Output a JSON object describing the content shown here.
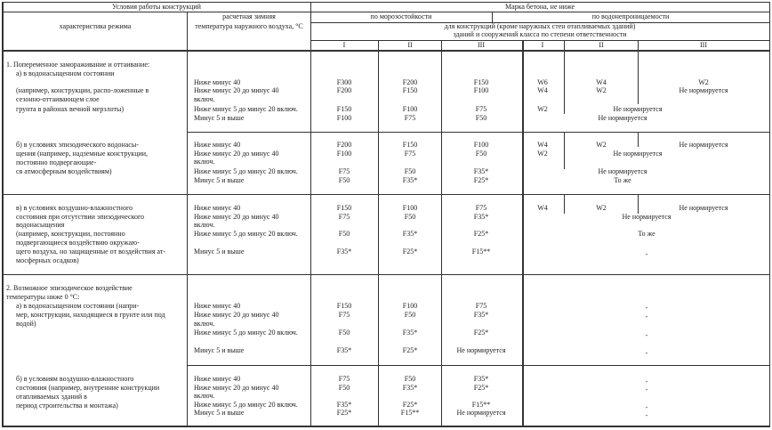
{
  "header": {
    "conditions": "Условия работы конструкций",
    "regime": "характеристика режима",
    "temp_line1": "расчетная зимняя",
    "temp_line2": "температура наружного воздуха, °С",
    "grade": "Марка бетона, не ниже",
    "frost": "по морозостойкости",
    "water": "по водонепроницаемости",
    "note1": "для конструкций (кроме наружных стен отапливаемых зданий)",
    "note2": "зданий и сооружений класса по степени ответственности",
    "classes": [
      "I",
      "II",
      "III",
      "I",
      "II",
      "III"
    ]
  },
  "groups": [
    {
      "regime": [
        "1. Попеременное замораживание и оттаивание:",
        "а) в водонасыщенном состоянии",
        "(например, конструкции, распо-ложенные в",
        "сезонно-оттаивающем слое",
        "грунта в районах вечной мерзлоты)"
      ],
      "temps": [
        "Ниже минус 40",
        "Ниже минус 20 до минус 40",
        "включ.",
        "Ниже минус 5 до минус 20 включ.",
        "Минус 5 и выше"
      ],
      "frost": [
        [
          "F300",
          "F200",
          "F150"
        ],
        [
          "F200",
          "F150",
          "F100"
        ],
        [
          "F150",
          "F100",
          "F75"
        ],
        [
          "F100",
          "F75",
          "F50"
        ]
      ],
      "water": [
        "W6",
        "W4",
        "W2",
        "W4",
        "W2",
        "Не нормируется",
        "W2",
        "Не нормируется",
        "Не нормируется"
      ]
    },
    {
      "regime": [
        "б) в условиях эпизодического водонасы-",
        "щения (например, надземные конструкции,",
        "постоянно подвергающие-",
        "ся атмосферным воздействиям)"
      ],
      "temps": [
        "Ниже минус 40",
        "Ниже минус 20 до минус 40",
        "включ.",
        "Ниже минус 5 до минус 20 включ.",
        "Минус 5 и выше"
      ],
      "frost": [
        [
          "F200",
          "F150",
          "F100"
        ],
        [
          "F100",
          "F75",
          "F50"
        ],
        [
          "F75",
          "F50",
          "F35*"
        ],
        [
          "F50",
          "F35*",
          "F25*"
        ]
      ],
      "water": [
        "W4",
        "W2",
        "Не нормируется",
        "W2",
        "Не нормируется",
        "Не нормируется",
        "То же"
      ]
    },
    {
      "regime": [
        "в) в условиях воздушно-влажностного",
        "состояния при отсутствии эпизодического",
        "водонасыщения",
        "(например, конструкции, постоянно",
        "подвергающиеся воздействию окружаю-",
        "щего воздуха, но защищенные от воздействия ат-",
        "мосферных осадков)"
      ],
      "temps": [
        "Ниже минус 40",
        "Ниже минус 20 до минус 40",
        "включ.",
        "Ниже минус 5 до минус 20 включ.",
        "Минус 5 и выше"
      ],
      "frost": [
        [
          "F150",
          "F100",
          "F75"
        ],
        [
          "F75",
          "F50",
          "F35*"
        ],
        [
          "F50",
          "F35*",
          "F25*"
        ],
        [
          "F35*",
          "F25*",
          "F15**"
        ]
      ],
      "water": [
        "W4",
        "W2",
        "Не нормируется",
        "Не нормируется",
        "То же",
        "-"
      ]
    },
    {
      "regime": [
        "2. Возможное эпизодическое воздействие",
        "температуры ниже 0 °С:",
        "а) в водонасыщенном состоянии (напри-",
        "мер, конструкции, находящиеся в грунте или под",
        "водой)"
      ],
      "temps": [
        "Ниже минус 40",
        "Ниже минус 20 до минус 40",
        "включ.",
        "Ниже минус 5 до минус 20 включ.",
        "Минус 5 и выше"
      ],
      "frost": [
        [
          "F150",
          "F100",
          "F75"
        ],
        [
          "F75",
          "F50",
          "F35*"
        ],
        [
          "F50",
          "F35*",
          "F25*"
        ],
        [
          "F35*",
          "F25*",
          "Не нормируется"
        ]
      ],
      "water": [
        "-",
        "-",
        "-",
        "-"
      ]
    },
    {
      "regime": [
        "б) в условиям воздушно-влажностного",
        "состояния (например, внутренние конструкции",
        "отапливаемых зданий в",
        "период строительства и монтажа)"
      ],
      "temps": [
        "Ниже минус 40",
        "Ниже минус 20 до минус 40",
        "включ.",
        "Ниже минус 5 до минус 20 включ.",
        "Минус 5 и выше"
      ],
      "frost": [
        [
          "F75",
          "F50",
          "F35*"
        ],
        [
          "F50",
          "F35*",
          "F25*"
        ],
        [
          "F35*",
          "F25*",
          "F15**"
        ],
        [
          "F25*",
          "F15**",
          "Не нормируется"
        ]
      ],
      "water": [
        "-",
        "-",
        "-",
        "-"
      ]
    }
  ]
}
